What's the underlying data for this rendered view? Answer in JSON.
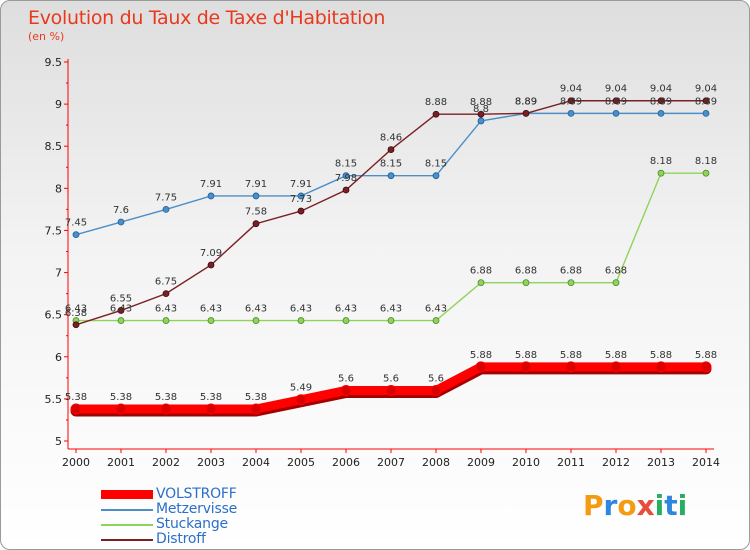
{
  "title": "Evolution du Taux de Taxe d'Habitation",
  "subtitle": "(en %)",
  "logo": {
    "text": "Proxiti",
    "letters": [
      "P",
      "r",
      "o",
      "x",
      "i",
      "t",
      "i"
    ],
    "colors": [
      "#f39c12",
      "#2e86de",
      "#f39c12",
      "#e74c3c",
      "#27ae60",
      "#2e86de",
      "#27ae60"
    ]
  },
  "chart_data": {
    "type": "line",
    "title": "Evolution du Taux de Taxe d'Habitation",
    "ylabel": "(en %)",
    "xlabel": "",
    "x": [
      2000,
      2001,
      2002,
      2003,
      2004,
      2005,
      2006,
      2007,
      2008,
      2009,
      2010,
      2011,
      2012,
      2013,
      2014
    ],
    "ylim": [
      5,
      9.5
    ],
    "yticks": [
      5,
      5.5,
      6,
      6.5,
      7,
      7.5,
      8,
      8.5,
      9,
      9.5
    ],
    "grid": false,
    "legend": "bottom-left",
    "series": [
      {
        "name": "VOLSTROFF",
        "color": "#ff0000",
        "values": [
          5.38,
          5.38,
          5.38,
          5.38,
          5.38,
          5.49,
          5.6,
          5.6,
          5.6,
          5.88,
          5.88,
          5.88,
          5.88,
          5.88,
          5.88
        ]
      },
      {
        "name": "Metzervisse",
        "color": "#4b8fc9",
        "values": [
          7.45,
          7.6,
          7.75,
          7.91,
          7.91,
          7.91,
          8.15,
          8.15,
          8.15,
          8.8,
          8.89,
          8.89,
          8.89,
          8.89,
          8.89
        ]
      },
      {
        "name": "Stuckange",
        "color": "#8fd45a",
        "values": [
          6.43,
          6.43,
          6.43,
          6.43,
          6.43,
          6.43,
          6.43,
          6.43,
          6.43,
          6.88,
          6.88,
          6.88,
          6.88,
          8.18,
          8.18
        ]
      },
      {
        "name": "Distroff",
        "color": "#7a1f24",
        "values": [
          6.38,
          6.55,
          6.75,
          7.09,
          7.58,
          7.73,
          7.98,
          8.46,
          8.88,
          8.88,
          8.89,
          9.04,
          9.04,
          9.04,
          9.04
        ]
      }
    ]
  }
}
